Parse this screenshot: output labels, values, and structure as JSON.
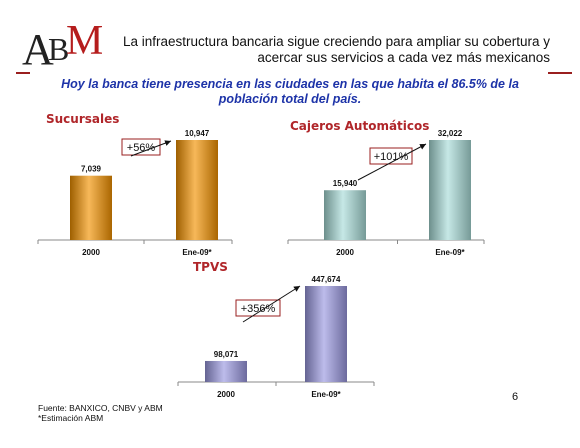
{
  "header": {
    "logo_text": "ABM",
    "title_line1": "La infraestructura bancaria sigue creciendo para ampliar su cobertura y",
    "title_line2": "acercar sus servicios a cada vez más mexicanos",
    "rule_color": "#9a1f1f"
  },
  "subtitle_line1": "Hoy la banca tiene presencia en las ciudades en las que habita el 86.5% de la",
  "subtitle_line2": "población total del país.",
  "chart_data": [
    {
      "type": "bar",
      "title": "Sucursales",
      "categories": [
        "2000",
        "Ene-09*"
      ],
      "values": [
        7039,
        10947
      ],
      "value_labels": [
        "7,039",
        "10,947"
      ],
      "growth_label": "+56%",
      "color": "#f39200",
      "ylim": [
        0,
        12000
      ]
    },
    {
      "type": "bar",
      "title": "Cajeros Automáticos",
      "categories": [
        "2000",
        "Ene-09*"
      ],
      "values": [
        15940,
        32022
      ],
      "value_labels": [
        "15,940",
        "32,022"
      ],
      "growth_label": "+101%",
      "color": "#a8dcd8",
      "ylim": [
        0,
        35000
      ]
    },
    {
      "type": "bar",
      "title": "TPVS",
      "categories": [
        "2000",
        "Ene-09*"
      ],
      "values": [
        98071,
        447674
      ],
      "value_labels": [
        "98,071",
        "447,674"
      ],
      "growth_label": "+356%",
      "color": "#9a98e0",
      "ylim": [
        0,
        480000
      ]
    }
  ],
  "footer": {
    "source": "Fuente: BANXICO, CNBV y ABM",
    "note": "*Estimación ABM"
  },
  "page_number": "6"
}
